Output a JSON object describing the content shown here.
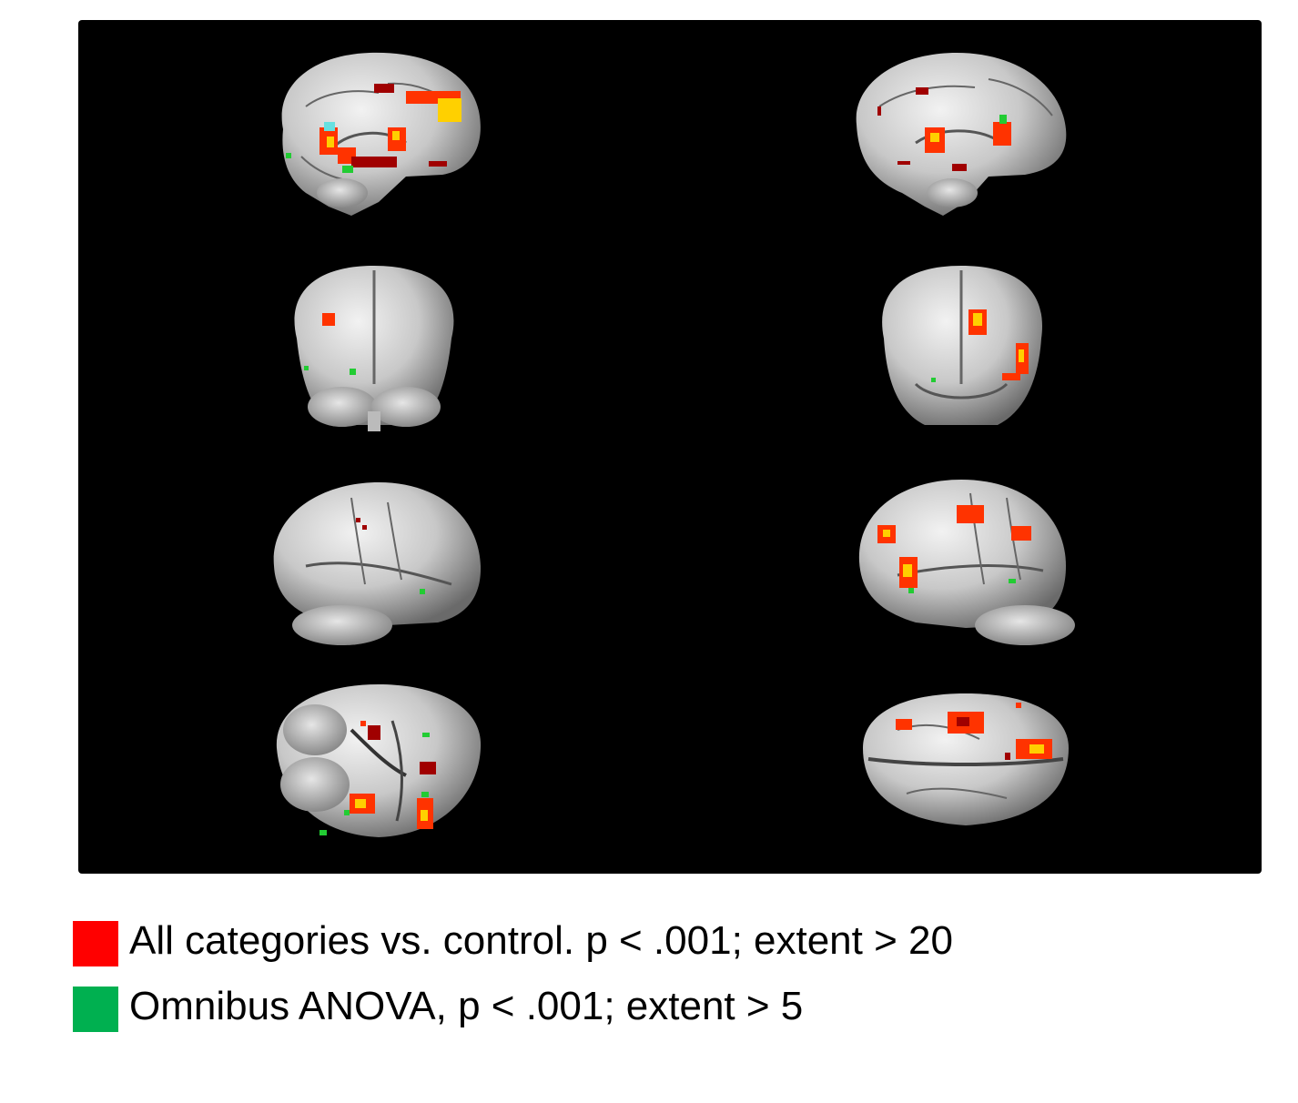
{
  "figure": {
    "views": [
      {
        "row": 1,
        "side": "left",
        "view": "medial-sagittal"
      },
      {
        "row": 1,
        "side": "right",
        "view": "medial-sagittal"
      },
      {
        "row": 2,
        "side": "left",
        "view": "posterior"
      },
      {
        "row": 2,
        "side": "right",
        "view": "anterior"
      },
      {
        "row": 3,
        "side": "left",
        "view": "lateral-right"
      },
      {
        "row": 3,
        "side": "right",
        "view": "lateral-left"
      },
      {
        "row": 4,
        "side": "left",
        "view": "inferior"
      },
      {
        "row": 4,
        "side": "right",
        "view": "superior"
      }
    ]
  },
  "legend": {
    "items": [
      {
        "label": "All categories vs. control. p < .001; extent > 20",
        "color": "#ff0000"
      },
      {
        "label": "Omnibus ANOVA, p < .001; extent > 5",
        "color": "#00b050"
      }
    ]
  },
  "colors": {
    "panel_background": "#000000",
    "brain_tissue": "#d9d9d9",
    "activation_low": "#a00000",
    "activation_mid": "#ff3300",
    "activation_high": "#ffd000",
    "anova": "#22cc33",
    "overlap": "#66e0e0"
  }
}
